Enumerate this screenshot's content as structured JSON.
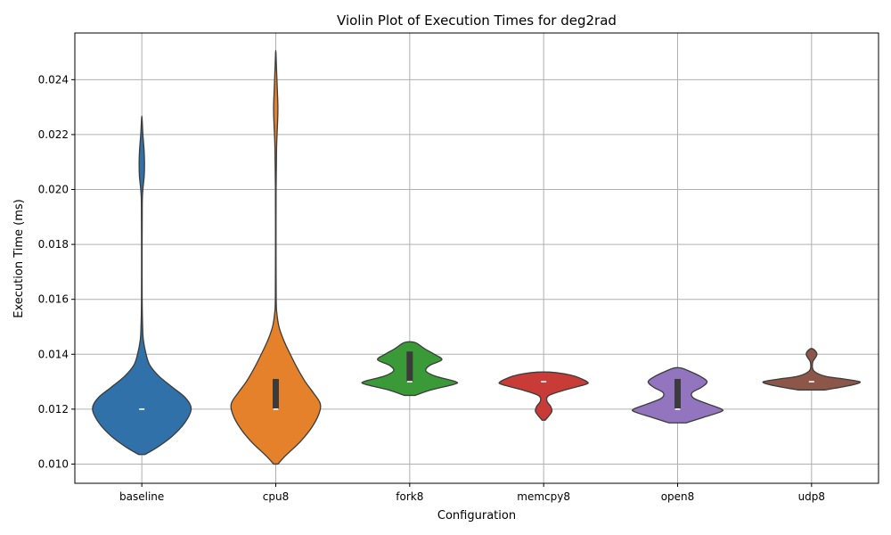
{
  "chart_data": {
    "type": "violin",
    "title": "Violin Plot of Execution Times for deg2rad",
    "xlabel": "Configuration",
    "ylabel": "Execution Time (ms)",
    "ylim": [
      0.0093,
      0.0257
    ],
    "yticks": [
      "0.010",
      "0.012",
      "0.014",
      "0.016",
      "0.018",
      "0.020",
      "0.022",
      "0.024"
    ],
    "grid": true,
    "categories": [
      "baseline",
      "cpu8",
      "fork8",
      "memcpy8",
      "open8",
      "udp8"
    ],
    "series": [
      {
        "category": "baseline",
        "color": "#2f71a8",
        "profile": [
          [
            0.01035,
            0.06
          ],
          [
            0.0106,
            0.28
          ],
          [
            0.011,
            0.56
          ],
          [
            0.0115,
            0.8
          ],
          [
            0.012,
            0.92
          ],
          [
            0.0124,
            0.82
          ],
          [
            0.0128,
            0.57
          ],
          [
            0.0132,
            0.32
          ],
          [
            0.0136,
            0.15
          ],
          [
            0.014,
            0.08
          ],
          [
            0.0145,
            0.03
          ],
          [
            0.015,
            0.015
          ],
          [
            0.016,
            0.006
          ],
          [
            0.018,
            0.005
          ],
          [
            0.0195,
            0.008
          ],
          [
            0.02,
            0.02
          ],
          [
            0.0205,
            0.045
          ],
          [
            0.021,
            0.05
          ],
          [
            0.0215,
            0.04
          ],
          [
            0.022,
            0.02
          ],
          [
            0.0226,
            0.004
          ]
        ],
        "median": 0.012,
        "q1": 0.012,
        "q3": 0.012
      },
      {
        "category": "cpu8",
        "color": "#e5812b",
        "profile": [
          [
            0.01,
            0.04
          ],
          [
            0.0103,
            0.18
          ],
          [
            0.0108,
            0.45
          ],
          [
            0.0113,
            0.66
          ],
          [
            0.0118,
            0.8
          ],
          [
            0.0122,
            0.83
          ],
          [
            0.0126,
            0.7
          ],
          [
            0.013,
            0.55
          ],
          [
            0.0135,
            0.4
          ],
          [
            0.014,
            0.27
          ],
          [
            0.0145,
            0.15
          ],
          [
            0.015,
            0.06
          ],
          [
            0.0155,
            0.02
          ],
          [
            0.016,
            0.008
          ],
          [
            0.018,
            0.005
          ],
          [
            0.02,
            0.006
          ],
          [
            0.0215,
            0.015
          ],
          [
            0.0225,
            0.035
          ],
          [
            0.023,
            0.04
          ],
          [
            0.0236,
            0.03
          ],
          [
            0.0245,
            0.012
          ],
          [
            0.025,
            0.003
          ]
        ],
        "median": 0.012,
        "q1": 0.012,
        "q3": 0.0131
      },
      {
        "category": "fork8",
        "color": "#3a9a38",
        "profile": [
          [
            0.0125,
            0.1
          ],
          [
            0.0127,
            0.4
          ],
          [
            0.0129,
            0.82
          ],
          [
            0.013,
            0.86
          ],
          [
            0.0132,
            0.48
          ],
          [
            0.0134,
            0.3
          ],
          [
            0.0136,
            0.38
          ],
          [
            0.0138,
            0.6
          ],
          [
            0.014,
            0.46
          ],
          [
            0.0142,
            0.28
          ],
          [
            0.0144,
            0.13
          ],
          [
            0.01445,
            0.04
          ]
        ],
        "median": 0.013,
        "q1": 0.013,
        "q3": 0.0141
      },
      {
        "category": "memcpy8",
        "color": "#c93b36",
        "profile": [
          [
            0.0116,
            0.03
          ],
          [
            0.0119,
            0.15
          ],
          [
            0.0121,
            0.13
          ],
          [
            0.0123,
            0.06
          ],
          [
            0.0125,
            0.1
          ],
          [
            0.0127,
            0.4
          ],
          [
            0.0129,
            0.78
          ],
          [
            0.013,
            0.81
          ],
          [
            0.0132,
            0.58
          ],
          [
            0.0133,
            0.35
          ],
          [
            0.01335,
            0.12
          ]
        ],
        "median": 0.013,
        "q1": 0.013,
        "q3": 0.013
      },
      {
        "category": "open8",
        "color": "#9274bf",
        "profile": [
          [
            0.0115,
            0.16
          ],
          [
            0.0117,
            0.48
          ],
          [
            0.0119,
            0.8
          ],
          [
            0.012,
            0.82
          ],
          [
            0.0122,
            0.55
          ],
          [
            0.0124,
            0.3
          ],
          [
            0.0126,
            0.27
          ],
          [
            0.0128,
            0.45
          ],
          [
            0.013,
            0.55
          ],
          [
            0.0132,
            0.42
          ],
          [
            0.0134,
            0.2
          ],
          [
            0.0135,
            0.06
          ]
        ],
        "median": 0.012,
        "q1": 0.012,
        "q3": 0.0131
      },
      {
        "category": "udp8",
        "color": "#8c5649",
        "profile": [
          [
            0.0127,
            0.25
          ],
          [
            0.0128,
            0.55
          ],
          [
            0.0129,
            0.8
          ],
          [
            0.013,
            0.9
          ],
          [
            0.0131,
            0.6
          ],
          [
            0.0132,
            0.25
          ],
          [
            0.0134,
            0.04
          ],
          [
            0.0137,
            0.02
          ],
          [
            0.0139,
            0.08
          ],
          [
            0.014,
            0.1
          ],
          [
            0.0141,
            0.08
          ],
          [
            0.0142,
            0.02
          ]
        ],
        "median": 0.013,
        "q1": 0.013,
        "q3": 0.013
      }
    ]
  }
}
